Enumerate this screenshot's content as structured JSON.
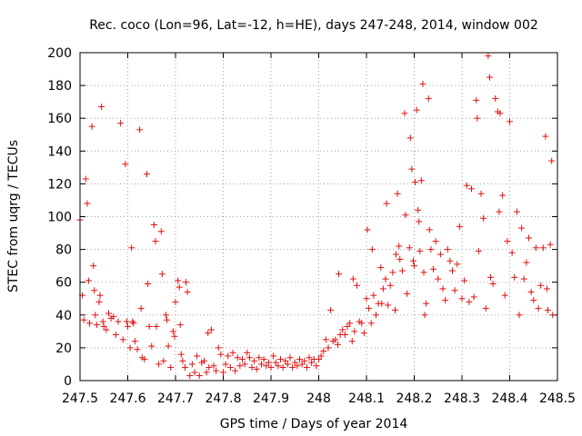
{
  "chart_data": {
    "type": "scatter",
    "title": "Rec. coco (Lon=96, Lat=-12, h=HE), days 247-248, 2014, window 002",
    "xlabel": "GPS time / Days of year 2014",
    "ylabel": "STEC from uqrg / TECUs",
    "xlim": [
      247.5,
      248.5
    ],
    "ylim": [
      0,
      200
    ],
    "xticks": [
      247.5,
      247.6,
      247.7,
      247.8,
      247.9,
      248.0,
      248.1,
      248.2,
      248.3,
      248.4,
      248.5
    ],
    "xtick_labels": [
      "247.5",
      "247.6",
      "247.7",
      "247.8",
      "247.9",
      "248",
      "248.1",
      "248.2",
      "248.3",
      "248.4",
      "248.5"
    ],
    "yticks": [
      0,
      20,
      40,
      60,
      80,
      100,
      120,
      140,
      160,
      180,
      200
    ],
    "ytick_labels": [
      "0",
      "20",
      "40",
      "60",
      "80",
      "100",
      "120",
      "140",
      "160",
      "180",
      "200"
    ],
    "grid": true,
    "marker": "+",
    "color": "#e01010",
    "series": [
      {
        "name": "STEC",
        "points": [
          [
            247.5,
            98
          ],
          [
            247.505,
            52
          ],
          [
            247.508,
            37
          ],
          [
            247.512,
            123
          ],
          [
            247.515,
            108
          ],
          [
            247.518,
            61
          ],
          [
            247.52,
            35
          ],
          [
            247.525,
            155
          ],
          [
            247.528,
            70
          ],
          [
            247.53,
            55
          ],
          [
            247.532,
            40
          ],
          [
            247.535,
            34
          ],
          [
            247.54,
            48
          ],
          [
            247.542,
            52
          ],
          [
            247.545,
            167
          ],
          [
            247.548,
            36
          ],
          [
            247.55,
            33
          ],
          [
            247.555,
            31
          ],
          [
            247.56,
            41
          ],
          [
            247.565,
            38
          ],
          [
            247.57,
            39
          ],
          [
            247.575,
            28
          ],
          [
            247.58,
            36
          ],
          [
            247.585,
            157
          ],
          [
            247.59,
            25
          ],
          [
            247.595,
            132
          ],
          [
            247.598,
            36
          ],
          [
            247.6,
            33
          ],
          [
            247.605,
            20
          ],
          [
            247.608,
            81
          ],
          [
            247.61,
            36
          ],
          [
            247.612,
            35
          ],
          [
            247.615,
            24
          ],
          [
            247.62,
            19
          ],
          [
            247.625,
            153
          ],
          [
            247.628,
            44
          ],
          [
            247.63,
            14
          ],
          [
            247.635,
            13
          ],
          [
            247.64,
            126
          ],
          [
            247.642,
            59
          ],
          [
            247.645,
            33
          ],
          [
            247.65,
            21
          ],
          [
            247.655,
            95
          ],
          [
            247.658,
            85
          ],
          [
            247.66,
            33
          ],
          [
            247.665,
            10
          ],
          [
            247.67,
            91
          ],
          [
            247.672,
            65
          ],
          [
            247.675,
            12
          ],
          [
            247.68,
            40
          ],
          [
            247.682,
            37
          ],
          [
            247.685,
            21
          ],
          [
            247.69,
            8
          ],
          [
            247.695,
            30
          ],
          [
            247.698,
            27
          ],
          [
            247.7,
            48
          ],
          [
            247.705,
            61
          ],
          [
            247.708,
            57
          ],
          [
            247.71,
            34
          ],
          [
            247.712,
            16
          ],
          [
            247.715,
            12
          ],
          [
            247.72,
            8
          ],
          [
            247.722,
            60
          ],
          [
            247.725,
            54
          ],
          [
            247.73,
            3
          ],
          [
            247.735,
            10
          ],
          [
            247.74,
            5
          ],
          [
            247.745,
            15
          ],
          [
            247.75,
            3
          ],
          [
            247.755,
            11
          ],
          [
            247.76,
            12
          ],
          [
            247.765,
            5
          ],
          [
            247.768,
            29
          ],
          [
            247.77,
            8
          ],
          [
            247.775,
            31
          ],
          [
            247.78,
            9
          ],
          [
            247.785,
            6
          ],
          [
            247.79,
            20
          ],
          [
            247.795,
            16
          ],
          [
            247.8,
            5
          ],
          [
            247.805,
            10
          ],
          [
            247.81,
            15
          ],
          [
            247.815,
            8
          ],
          [
            247.82,
            17
          ],
          [
            247.825,
            6
          ],
          [
            247.83,
            14
          ],
          [
            247.835,
            9
          ],
          [
            247.84,
            13
          ],
          [
            247.845,
            10
          ],
          [
            247.85,
            17
          ],
          [
            247.855,
            14
          ],
          [
            247.86,
            8
          ],
          [
            247.865,
            12
          ],
          [
            247.87,
            7
          ],
          [
            247.875,
            14
          ],
          [
            247.88,
            10
          ],
          [
            247.885,
            13
          ],
          [
            247.89,
            9
          ],
          [
            247.895,
            11
          ],
          [
            247.9,
            8
          ],
          [
            247.905,
            15
          ],
          [
            247.91,
            11
          ],
          [
            247.915,
            9
          ],
          [
            247.92,
            13
          ],
          [
            247.925,
            8
          ],
          [
            247.93,
            12
          ],
          [
            247.935,
            10
          ],
          [
            247.94,
            14
          ],
          [
            247.945,
            8
          ],
          [
            247.95,
            11
          ],
          [
            247.955,
            9
          ],
          [
            247.96,
            13
          ],
          [
            247.965,
            10
          ],
          [
            247.97,
            12
          ],
          [
            247.975,
            8
          ],
          [
            247.98,
            14
          ],
          [
            247.985,
            11
          ],
          [
            247.99,
            13
          ],
          [
            247.995,
            9
          ],
          [
            248.0,
            13
          ],
          [
            248.005,
            15
          ],
          [
            248.01,
            18
          ],
          [
            248.015,
            25
          ],
          [
            248.02,
            20
          ],
          [
            248.025,
            43
          ],
          [
            248.03,
            24
          ],
          [
            248.035,
            25
          ],
          [
            248.04,
            22
          ],
          [
            248.042,
            65
          ],
          [
            248.045,
            28
          ],
          [
            248.05,
            31
          ],
          [
            248.055,
            28
          ],
          [
            248.06,
            33
          ],
          [
            248.065,
            35
          ],
          [
            248.07,
            24
          ],
          [
            248.072,
            62
          ],
          [
            248.075,
            30
          ],
          [
            248.08,
            58
          ],
          [
            248.085,
            36
          ],
          [
            248.09,
            35
          ],
          [
            248.095,
            29
          ],
          [
            248.1,
            50
          ],
          [
            248.102,
            92
          ],
          [
            248.105,
            44
          ],
          [
            248.11,
            35
          ],
          [
            248.112,
            80
          ],
          [
            248.115,
            52
          ],
          [
            248.12,
            40
          ],
          [
            248.125,
            47
          ],
          [
            248.13,
            69
          ],
          [
            248.132,
            47
          ],
          [
            248.135,
            56
          ],
          [
            248.14,
            62
          ],
          [
            248.142,
            108
          ],
          [
            248.145,
            46
          ],
          [
            248.15,
            58
          ],
          [
            248.155,
            66
          ],
          [
            248.16,
            43
          ],
          [
            248.162,
            77
          ],
          [
            248.165,
            114
          ],
          [
            248.168,
            82
          ],
          [
            248.17,
            74
          ],
          [
            248.175,
            67
          ],
          [
            248.18,
            163
          ],
          [
            248.182,
            101
          ],
          [
            248.185,
            53
          ],
          [
            248.19,
            81
          ],
          [
            248.192,
            148
          ],
          [
            248.195,
            129
          ],
          [
            248.198,
            73
          ],
          [
            248.2,
            70
          ],
          [
            248.202,
            121
          ],
          [
            248.205,
            165
          ],
          [
            248.208,
            104
          ],
          [
            248.21,
            97
          ],
          [
            248.212,
            79
          ],
          [
            248.215,
            122
          ],
          [
            248.218,
            181
          ],
          [
            248.22,
            66
          ],
          [
            248.222,
            40
          ],
          [
            248.225,
            47
          ],
          [
            248.23,
            172
          ],
          [
            248.232,
            92
          ],
          [
            248.235,
            80
          ],
          [
            248.24,
            68
          ],
          [
            248.245,
            85
          ],
          [
            248.25,
            62
          ],
          [
            248.255,
            77
          ],
          [
            248.26,
            56
          ],
          [
            248.265,
            49
          ],
          [
            248.27,
            80
          ],
          [
            248.275,
            73
          ],
          [
            248.28,
            67
          ],
          [
            248.285,
            55
          ],
          [
            248.29,
            71
          ],
          [
            248.295,
            94
          ],
          [
            248.3,
            50
          ],
          [
            248.305,
            61
          ],
          [
            248.31,
            119
          ],
          [
            248.315,
            48
          ],
          [
            248.32,
            117
          ],
          [
            248.325,
            51
          ],
          [
            248.33,
            171
          ],
          [
            248.332,
            160
          ],
          [
            248.335,
            79
          ],
          [
            248.34,
            114
          ],
          [
            248.345,
            99
          ],
          [
            248.35,
            44
          ],
          [
            248.355,
            198
          ],
          [
            248.358,
            185
          ],
          [
            248.36,
            63
          ],
          [
            248.365,
            59
          ],
          [
            248.37,
            172
          ],
          [
            248.375,
            164
          ],
          [
            248.378,
            103
          ],
          [
            248.38,
            163
          ],
          [
            248.385,
            113
          ],
          [
            248.39,
            52
          ],
          [
            248.395,
            85
          ],
          [
            248.4,
            158
          ],
          [
            248.405,
            78
          ],
          [
            248.41,
            63
          ],
          [
            248.415,
            103
          ],
          [
            248.42,
            40
          ],
          [
            248.425,
            93
          ],
          [
            248.43,
            62
          ],
          [
            248.435,
            72
          ],
          [
            248.44,
            87
          ],
          [
            248.445,
            54
          ],
          [
            248.45,
            49
          ],
          [
            248.455,
            81
          ],
          [
            248.46,
            44
          ],
          [
            248.465,
            58
          ],
          [
            248.47,
            81
          ],
          [
            248.475,
            149
          ],
          [
            248.478,
            56
          ],
          [
            248.48,
            43
          ],
          [
            248.485,
            83
          ],
          [
            248.488,
            134
          ],
          [
            248.49,
            40
          ]
        ]
      }
    ]
  }
}
